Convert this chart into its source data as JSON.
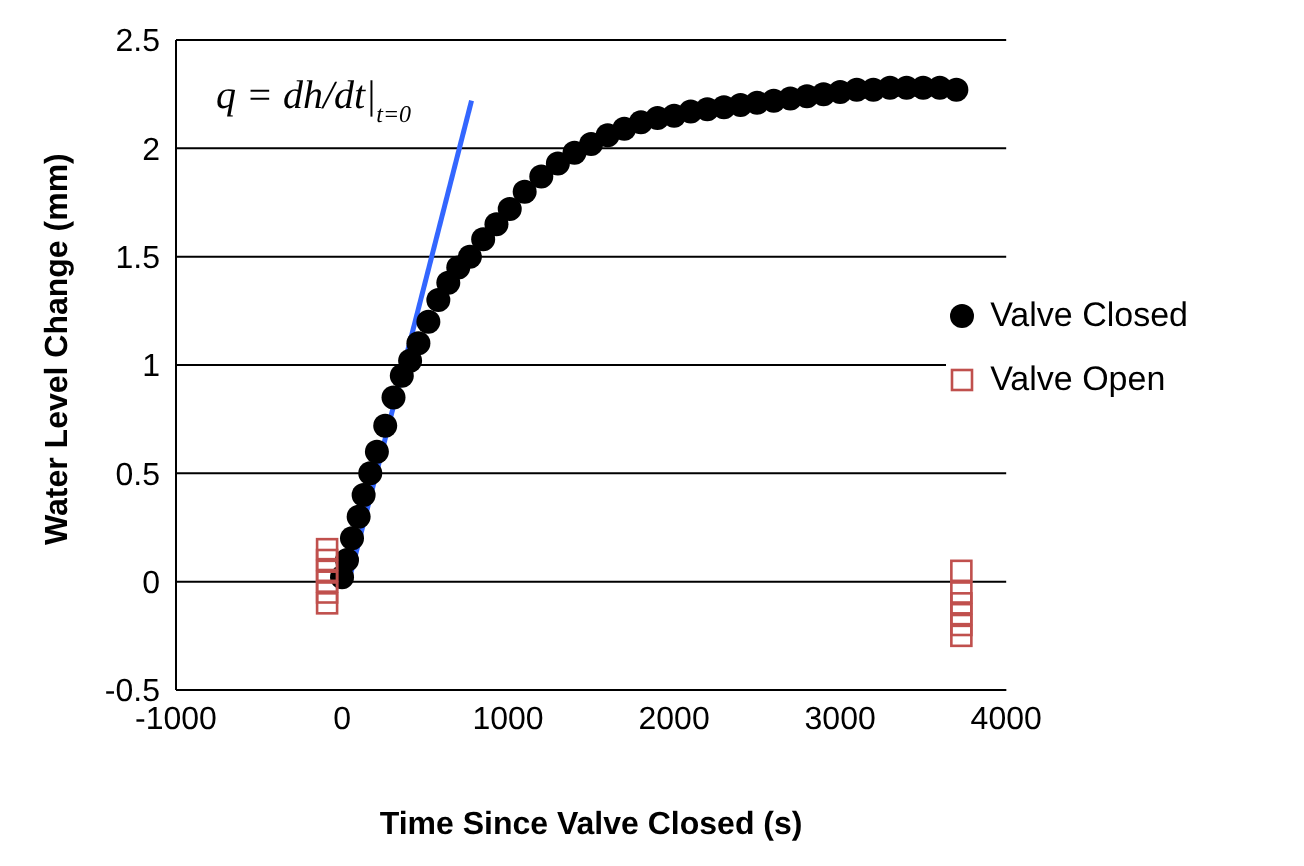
{
  "chart_data": {
    "type": "scatter",
    "xlabel": "Time Since Valve Closed (s)",
    "ylabel": "Water Level Change (mm)",
    "xlim": [
      -1000,
      4000
    ],
    "xticks": [
      -1000,
      0,
      1000,
      2000,
      3000,
      4000
    ],
    "ylim": [
      -0.5,
      2.5
    ],
    "yticks": [
      -0.5,
      0,
      0.5,
      1,
      1.5,
      2,
      2.5
    ],
    "grid": "y",
    "legend": "right",
    "annotations": [
      "q = dh/dt|$_{t=0}$"
    ],
    "series": [
      {
        "name": "Valve Closed",
        "color": "#000000",
        "marker": "circle",
        "x": [
          0,
          30,
          60,
          100,
          130,
          170,
          210,
          260,
          310,
          360,
          410,
          460,
          520,
          580,
          640,
          700,
          770,
          850,
          930,
          1010,
          1100,
          1200,
          1300,
          1400,
          1500,
          1600,
          1700,
          1800,
          1900,
          2000,
          2100,
          2200,
          2300,
          2400,
          2500,
          2600,
          2700,
          2800,
          2900,
          3000,
          3100,
          3200,
          3300,
          3400,
          3500,
          3600,
          3700
        ],
        "values": [
          0.02,
          0.1,
          0.2,
          0.3,
          0.4,
          0.5,
          0.6,
          0.72,
          0.85,
          0.95,
          1.02,
          1.1,
          1.2,
          1.3,
          1.38,
          1.45,
          1.5,
          1.58,
          1.65,
          1.72,
          1.8,
          1.87,
          1.93,
          1.98,
          2.02,
          2.06,
          2.09,
          2.12,
          2.14,
          2.15,
          2.17,
          2.18,
          2.19,
          2.2,
          2.21,
          2.22,
          2.23,
          2.24,
          2.25,
          2.26,
          2.27,
          2.27,
          2.28,
          2.28,
          2.28,
          2.28,
          2.27
        ]
      },
      {
        "name": "Valve Open",
        "color": "#c0504d",
        "marker": "square",
        "x": [
          -90,
          -90,
          -90,
          -90,
          -90,
          -90,
          3730,
          3730,
          3730,
          3730,
          3730,
          3730
        ],
        "values": [
          0.15,
          0.1,
          0.05,
          0,
          -0.05,
          -0.1,
          0.05,
          -0.05,
          -0.1,
          -0.15,
          -0.2,
          -0.25
        ]
      },
      {
        "type": "line",
        "color": "#3366ff",
        "x": [
          50,
          780
        ],
        "values": [
          0.03,
          2.22
        ]
      }
    ]
  }
}
